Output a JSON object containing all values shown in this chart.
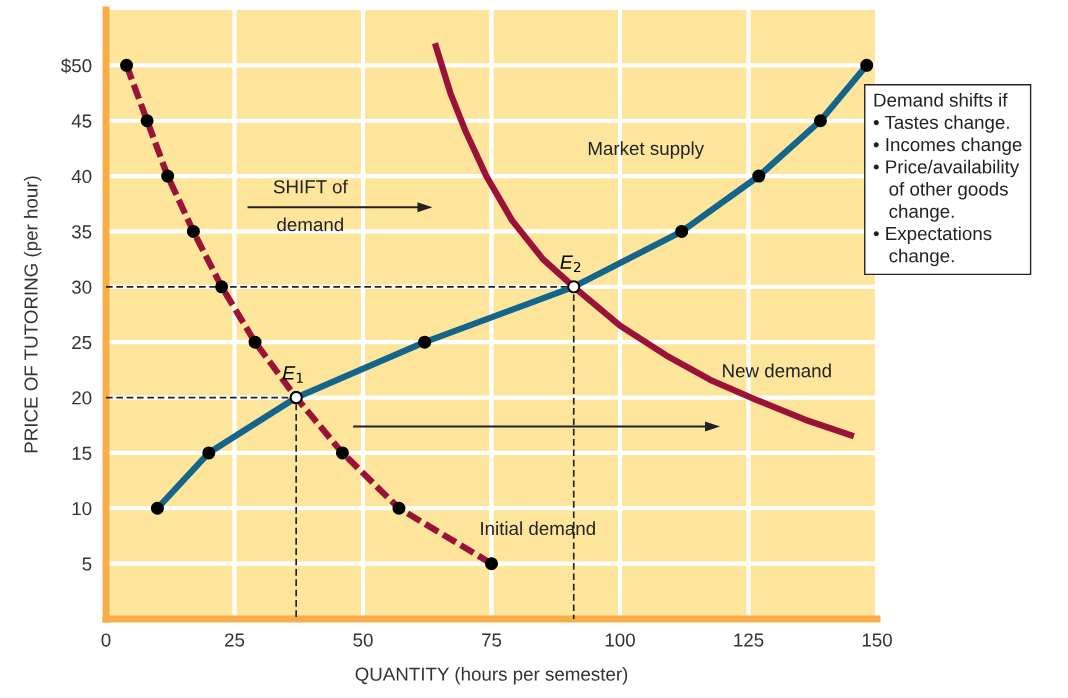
{
  "chart_data": {
    "type": "line",
    "xlabel": "QUANTITY (hours per semester)",
    "ylabel": "PRICE OF TUTORING (per hour)",
    "xlim": [
      0,
      150
    ],
    "ylim": [
      0,
      55
    ],
    "xticks": [
      0,
      25,
      50,
      75,
      100,
      125,
      150
    ],
    "yticks": [
      5,
      10,
      15,
      20,
      25,
      30,
      35,
      40,
      45,
      {
        "value": 50,
        "label": "$50"
      }
    ],
    "grid": true,
    "legend": false,
    "series": [
      {
        "line_style": "dashed",
        "color": "#222222",
        "marker": "none",
        "x": [
          0,
          37,
          37
        ],
        "values": [
          20,
          20,
          0
        ]
      },
      {
        "line_style": "dashed",
        "color": "#222222",
        "marker": "none",
        "x": [
          0,
          91,
          91
        ],
        "values": [
          30,
          30,
          0
        ]
      },
      {
        "name": "Initial demand",
        "line_style": "dashed",
        "color": "#9b1239",
        "marker": "circle",
        "x": [
          4,
          8,
          12,
          17,
          22.5,
          29,
          37,
          46,
          57,
          75
        ],
        "values": [
          50,
          45,
          40,
          35,
          30,
          25,
          20,
          15,
          10,
          5
        ]
      },
      {
        "name": "New demand",
        "line_style": "solid",
        "color": "#9b1239",
        "marker": "none",
        "x": [
          64,
          67,
          70,
          74,
          79,
          85,
          91,
          100,
          109,
          118,
          126.5,
          136,
          145.5
        ],
        "values": [
          52,
          47.5,
          44,
          40,
          36,
          32.5,
          30,
          26.5,
          23.8,
          21.5,
          19.8,
          18,
          16.5
        ]
      },
      {
        "name": "Market supply",
        "line_style": "solid",
        "color": "#13658c",
        "marker": "circle",
        "x": [
          10,
          20,
          37,
          62,
          91,
          112,
          127,
          139,
          148
        ],
        "values": [
          10,
          15,
          20,
          25,
          30,
          35,
          40,
          45,
          50
        ]
      },
      {
        "type": "scatter",
        "color": "#ffffff",
        "marker": "circle",
        "x": [
          37,
          91
        ],
        "values": [
          20,
          30
        ]
      }
    ],
    "annotations": [
      {
        "text": "E$_{1}$",
        "x": 37,
        "y": 20
      },
      {
        "text": "E$_{2}$",
        "x": 91,
        "y": 30
      },
      "SHIFT of\ndemand",
      "Demand shifts if\n• Tastes change.\n• Incomes change\n• Price/availability\n   of other goods\n   change.\n• Expectations\n   change."
    ]
  }
}
